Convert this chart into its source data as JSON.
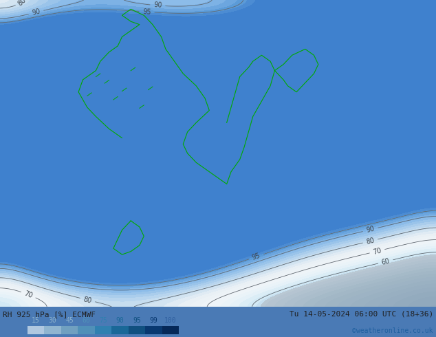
{
  "title_left": "RH 925 hPa [%] ECMWF",
  "title_right": "Tu 14-05-2024 06:00 UTC (18+36)",
  "credit": "©weatheronline.co.uk",
  "legend_values": [
    15,
    30,
    45,
    60,
    75,
    90,
    95,
    99,
    100
  ],
  "legend_colors": [
    "#d4e8f8",
    "#b8d8f0",
    "#9ac8e8",
    "#75b8e0",
    "#4da8d8",
    "#2090c8",
    "#1070a0",
    "#005080",
    "#003060"
  ],
  "bg_color": "#4a7ab5",
  "map_bg": "#6699cc",
  "figsize": [
    6.34,
    4.9
  ],
  "dpi": 100,
  "bottom_bar_height": 0.08,
  "contour_label_fontsize": 7,
  "legend_fontsize": 8,
  "title_fontsize": 8,
  "credit_fontsize": 7,
  "legend_label_colors": [
    "#b0c8e0",
    "#b0c8e0",
    "#b0c8e0",
    "#4da8d8",
    "#4da8d8",
    "#2090c8",
    "#1070a0",
    "#005080",
    "#2060a0"
  ],
  "fill_colors": {
    "under15": "#3a6090",
    "15_30": "#5585b5",
    "30_45": "#7aaad0",
    "45_60": "#a0c8e0",
    "60_75": "#c8e0f0",
    "75_90": "#e0eff8",
    "90_95": "#f0f8ff",
    "95_99": "#d8f0d8",
    "99_100": "#a0d8a0",
    "over100": "#70c070"
  }
}
